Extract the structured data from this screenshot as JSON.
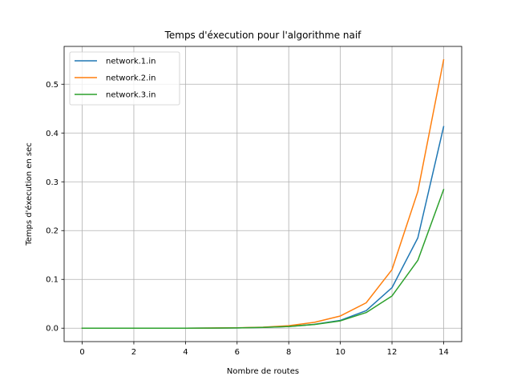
{
  "chart_data": {
    "type": "line",
    "title": "Temps d'éxecution pour l'algorithme naif",
    "xlabel": "Nombre de routes",
    "ylabel": "Temps d'éxecution en sec",
    "xlim": [
      -0.7,
      14.7
    ],
    "ylim": [
      -0.0275,
      0.5775
    ],
    "xticks": [
      0,
      2,
      4,
      6,
      8,
      10,
      12,
      14
    ],
    "xtick_labels": [
      "0",
      "2",
      "4",
      "6",
      "8",
      "10",
      "12",
      "14"
    ],
    "yticks": [
      0.0,
      0.1,
      0.2,
      0.3,
      0.4,
      0.5
    ],
    "ytick_labels": [
      "0.0",
      "0.1",
      "0.2",
      "0.3",
      "0.4",
      "0.5"
    ],
    "grid": true,
    "legend": "top-left",
    "x": [
      0,
      1,
      2,
      3,
      4,
      5,
      6,
      7,
      8,
      9,
      10,
      11,
      12,
      13,
      14
    ],
    "series": [
      {
        "name": "network.1.in",
        "color": "#1f77b4",
        "values": [
          0.0,
          0.0,
          0.0,
          0.0,
          0.0,
          0.0002,
          0.0006,
          0.0015,
          0.0035,
          0.008,
          0.016,
          0.036,
          0.083,
          0.185,
          0.413
        ]
      },
      {
        "name": "network.2.in",
        "color": "#ff7f0e",
        "values": [
          0.0,
          0.0,
          0.0,
          0.0,
          0.0,
          0.0003,
          0.0008,
          0.002,
          0.005,
          0.012,
          0.025,
          0.052,
          0.12,
          0.28,
          0.55
        ]
      },
      {
        "name": "network.3.in",
        "color": "#2ca02c",
        "values": [
          0.0,
          0.0,
          0.0,
          0.0,
          0.0,
          0.0002,
          0.0006,
          0.0015,
          0.0035,
          0.0075,
          0.015,
          0.032,
          0.066,
          0.139,
          0.284
        ]
      }
    ]
  }
}
